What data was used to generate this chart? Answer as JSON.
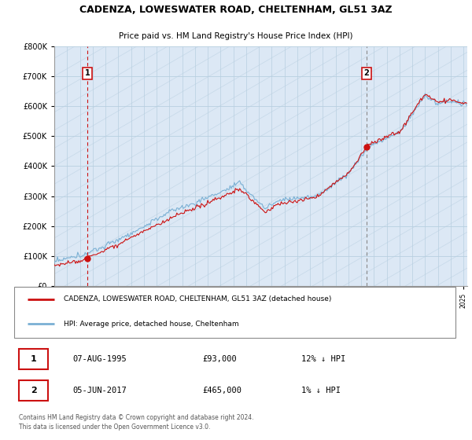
{
  "title_line1": "CADENZA, LOWESWATER ROAD, CHELTENHAM, GL51 3AZ",
  "title_line2": "Price paid vs. HM Land Registry's House Price Index (HPI)",
  "sale1_date": "07-AUG-1995",
  "sale1_price": 93000,
  "sale1_year": 1995.6,
  "sale2_date": "05-JUN-2017",
  "sale2_price": 465000,
  "sale2_year": 2017.43,
  "legend_line1": "CADENZA, LOWESWATER ROAD, CHELTENHAM, GL51 3AZ (detached house)",
  "legend_line2": "HPI: Average price, detached house, Cheltenham",
  "footnote": "Contains HM Land Registry data © Crown copyright and database right 2024.\nThis data is licensed under the Open Government Licence v3.0.",
  "ylim": [
    0,
    800000
  ],
  "yticks": [
    0,
    100000,
    200000,
    300000,
    400000,
    500000,
    600000,
    700000,
    800000
  ],
  "hpi_color": "#7ab0d4",
  "property_color": "#cc1111",
  "plot_bg_color": "#dce8f5",
  "grid_color": "#b8cfe0",
  "xlim_start": 1993,
  "xlim_end": 2025.3
}
